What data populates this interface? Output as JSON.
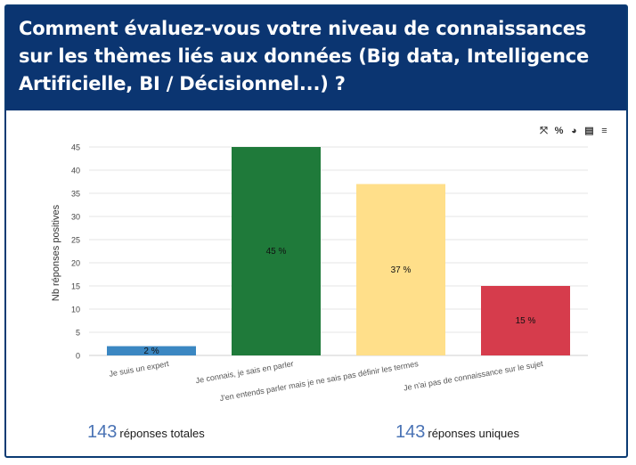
{
  "question": {
    "title": "Comment évaluez-vous votre niveau de connaissances sur les thèmes liés aux données (Big data, Intelligence Artificielle, BI / Décisionnel...) ?"
  },
  "toolbar": {
    "icons": [
      "expand-icon",
      "percent-icon",
      "pie-chart-icon",
      "export-pdf-icon",
      "database-icon"
    ],
    "glyphs": [
      "⤧",
      "%",
      "◕",
      "▤",
      "≡"
    ]
  },
  "chart_data": {
    "type": "bar",
    "ylabel": "Nb réponses positives",
    "xlabel": "",
    "ylim": [
      0,
      45
    ],
    "yticks": [
      0,
      5,
      10,
      15,
      20,
      25,
      30,
      35,
      40,
      45
    ],
    "categories": [
      "Je suis un expert",
      "Je connais, je sais en parler",
      "J'en entends parler mais je ne sais pas définir les termes",
      "Je n'ai pas de connaissance sur le sujet"
    ],
    "values": [
      2,
      45,
      37,
      15
    ],
    "data_labels": [
      "2 %",
      "45 %",
      "37 %",
      "15 %"
    ],
    "colors": [
      "#3b87c2",
      "#1f7a3a",
      "#ffdf8a",
      "#d63c4c"
    ],
    "grid": true
  },
  "footer": {
    "total_count": "143",
    "total_label": "réponses totales",
    "unique_count": "143",
    "unique_label": "réponses uniques"
  }
}
